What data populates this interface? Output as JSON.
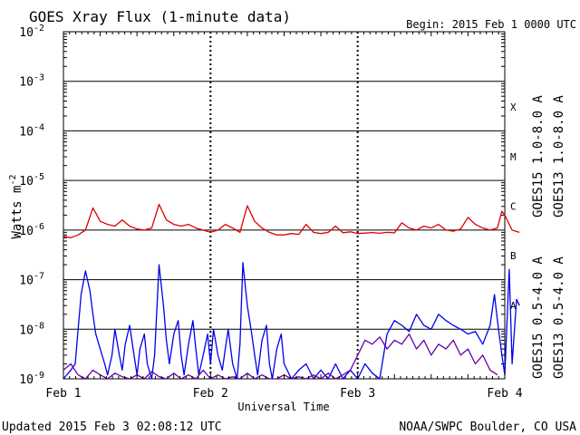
{
  "chart_data": {
    "type": "line",
    "title": "GOES Xray Flux (1-minute data)",
    "begin": "Begin:  2015 Feb 1 0000 UTC",
    "ylabel": "Watts m",
    "ylabel_exp": "-2",
    "xlabel": "Universal Time",
    "y_scale": "log",
    "ylim": [
      1e-09,
      0.01
    ],
    "y_ticks": [
      {
        "base": "10",
        "exp": "-2",
        "value": 0.01
      },
      {
        "base": "10",
        "exp": "-3",
        "value": 0.001
      },
      {
        "base": "10",
        "exp": "-4",
        "value": 0.0001
      },
      {
        "base": "10",
        "exp": "-5",
        "value": 1e-05
      },
      {
        "base": "10",
        "exp": "-6",
        "value": 1e-06
      },
      {
        "base": "10",
        "exp": "-7",
        "value": 1e-07
      },
      {
        "base": "10",
        "exp": "-8",
        "value": 1e-08
      },
      {
        "base": "10",
        "exp": "-9",
        "value": 1e-09
      }
    ],
    "x_ticks": [
      "Feb 1",
      "Feb 2",
      "Feb 3",
      "Feb 4"
    ],
    "xlim_days": [
      0,
      3
    ],
    "flare_classes": [
      {
        "label": "X",
        "value": 0.000316
      },
      {
        "label": "M",
        "value": 3.16e-05
      },
      {
        "label": "C",
        "value": 3.16e-06
      },
      {
        "label": "B",
        "value": 3.16e-07
      },
      {
        "label": "A",
        "value": 3.16e-08
      }
    ],
    "grid": "horizontal lines at each decade, dotted day boundaries",
    "legend": [
      {
        "label": "GOES15 1.0-8.0 A",
        "color": "#dd0000"
      },
      {
        "label": "GOES13 1.0-8.0 A",
        "color": "#e8a000"
      },
      {
        "label": "GOES15 0.5-4.0 A",
        "color": "#0000ee"
      },
      {
        "label": "GOES13 0.5-4.0 A",
        "color": "#6600aa"
      }
    ],
    "series": [
      {
        "name": "GOES15 1.0-8.0 A",
        "color": "#dd0000",
        "x": [
          0.0,
          0.05,
          0.1,
          0.15,
          0.2,
          0.22,
          0.25,
          0.3,
          0.35,
          0.4,
          0.45,
          0.5,
          0.55,
          0.6,
          0.65,
          0.7,
          0.75,
          0.8,
          0.85,
          0.9,
          0.95,
          1.0,
          1.05,
          1.1,
          1.15,
          1.2,
          1.25,
          1.3,
          1.35,
          1.4,
          1.45,
          1.5,
          1.55,
          1.6,
          1.65,
          1.7,
          1.75,
          1.8,
          1.85,
          1.9,
          1.95,
          2.0,
          2.05,
          2.1,
          2.15,
          2.2,
          2.25,
          2.3,
          2.35,
          2.4,
          2.45,
          2.5,
          2.55,
          2.6,
          2.65,
          2.7,
          2.75,
          2.8,
          2.85,
          2.9,
          2.95,
          2.98,
          3.0,
          3.05,
          3.1
        ],
        "values": [
          7.5e-07,
          7e-07,
          8e-07,
          1e-06,
          2.8e-06,
          2.2e-06,
          1.5e-06,
          1.3e-06,
          1.2e-06,
          1.6e-06,
          1.2e-06,
          1.05e-06,
          1e-06,
          1.1e-06,
          3.3e-06,
          1.6e-06,
          1.3e-06,
          1.2e-06,
          1.3e-06,
          1.1e-06,
          1e-06,
          9e-07,
          1e-06,
          1.3e-06,
          1.1e-06,
          9e-07,
          3.1e-06,
          1.5e-06,
          1.1e-06,
          9e-07,
          8e-07,
          8e-07,
          8.5e-07,
          8.2e-07,
          1.3e-06,
          9e-07,
          8.5e-07,
          9e-07,
          1.2e-06,
          8.8e-07,
          9.2e-07,
          8.5e-07,
          8.7e-07,
          8.9e-07,
          8.6e-07,
          9e-07,
          8.8e-07,
          1.4e-06,
          1.1e-06,
          1e-06,
          1.2e-06,
          1.1e-06,
          1.3e-06,
          1e-06,
          9.5e-07,
          1.05e-06,
          1.8e-06,
          1.3e-06,
          1.1e-06,
          1e-06,
          1.1e-06,
          2.4e-06,
          2e-06,
          1e-06,
          9e-07
        ]
      },
      {
        "name": "GOES15 0.5-4.0 A",
        "color": "#0000ee",
        "x": [
          0.0,
          0.05,
          0.08,
          0.1,
          0.12,
          0.15,
          0.18,
          0.2,
          0.22,
          0.25,
          0.28,
          0.3,
          0.33,
          0.35,
          0.38,
          0.4,
          0.42,
          0.45,
          0.48,
          0.5,
          0.52,
          0.55,
          0.57,
          0.6,
          0.62,
          0.65,
          0.68,
          0.7,
          0.72,
          0.75,
          0.78,
          0.8,
          0.82,
          0.85,
          0.88,
          0.9,
          0.92,
          0.95,
          0.98,
          1.0,
          1.02,
          1.05,
          1.08,
          1.1,
          1.12,
          1.15,
          1.18,
          1.2,
          1.22,
          1.25,
          1.28,
          1.3,
          1.32,
          1.35,
          1.38,
          1.4,
          1.42,
          1.45,
          1.48,
          1.5,
          1.55,
          1.6,
          1.65,
          1.7,
          1.75,
          1.8,
          1.85,
          1.9,
          1.95,
          2.0,
          2.05,
          2.1,
          2.15,
          2.2,
          2.25,
          2.3,
          2.35,
          2.4,
          2.45,
          2.5,
          2.55,
          2.6,
          2.65,
          2.7,
          2.75,
          2.8,
          2.85,
          2.9,
          2.93,
          2.95,
          2.98,
          3.0,
          3.03,
          3.05,
          3.08,
          3.1
        ],
        "values": [
          1e-09,
          1.5e-09,
          2e-09,
          1e-08,
          5e-08,
          1.5e-07,
          6e-08,
          2e-08,
          8e-09,
          4e-09,
          2e-09,
          1.2e-09,
          3e-09,
          1e-08,
          3e-09,
          1.5e-09,
          5e-09,
          1.2e-08,
          3e-09,
          1.2e-09,
          4e-09,
          8e-09,
          2e-09,
          1e-09,
          3e-09,
          2e-07,
          3e-08,
          6e-09,
          2e-09,
          8e-09,
          1.5e-08,
          3e-09,
          1.2e-09,
          5e-09,
          1.5e-08,
          4e-09,
          1.2e-09,
          3e-09,
          8e-09,
          2e-09,
          1e-08,
          3e-09,
          1.5e-09,
          4e-09,
          1e-08,
          2e-09,
          1e-09,
          5e-09,
          2.2e-07,
          3e-08,
          8e-09,
          3e-09,
          1.2e-09,
          6e-09,
          1.2e-08,
          2e-09,
          1e-09,
          4e-09,
          8e-09,
          2e-09,
          1e-09,
          1.5e-09,
          2e-09,
          1e-09,
          1.5e-09,
          1e-09,
          2e-09,
          1e-09,
          1.5e-09,
          1e-09,
          2e-09,
          1.3e-09,
          1e-09,
          8e-09,
          1.5e-08,
          1.2e-08,
          9e-09,
          2e-08,
          1.2e-08,
          1e-08,
          2e-08,
          1.5e-08,
          1.2e-08,
          1e-08,
          8e-09,
          9e-09,
          5e-09,
          1.2e-08,
          5e-08,
          1.5e-08,
          3e-09,
          1.2e-09,
          1.6e-07,
          2e-09,
          4e-08,
          3e-08
        ]
      },
      {
        "name": "GOES13 0.5-4.0 A",
        "color": "#6600aa",
        "x": [
          0.0,
          0.05,
          0.1,
          0.15,
          0.2,
          0.25,
          0.3,
          0.35,
          0.4,
          0.45,
          0.5,
          0.55,
          0.6,
          0.65,
          0.7,
          0.75,
          0.8,
          0.85,
          0.9,
          0.95,
          1.0,
          1.05,
          1.1,
          1.15,
          1.2,
          1.25,
          1.3,
          1.35,
          1.4,
          1.45,
          1.5,
          1.55,
          1.6,
          1.65,
          1.7,
          1.75,
          1.8,
          1.85,
          1.9,
          1.95,
          2.0,
          2.05,
          2.1,
          2.15,
          2.2,
          2.25,
          2.3,
          2.35,
          2.4,
          2.45,
          2.5,
          2.55,
          2.6,
          2.65,
          2.7,
          2.75,
          2.8,
          2.85,
          2.9,
          2.95
        ],
        "values": [
          1.5e-09,
          2e-09,
          1.2e-09,
          1e-09,
          1.5e-09,
          1.2e-09,
          1e-09,
          1.3e-09,
          1.1e-09,
          1e-09,
          1.2e-09,
          1e-09,
          1.4e-09,
          1.1e-09,
          1e-09,
          1.3e-09,
          1e-09,
          1.2e-09,
          1e-09,
          1.5e-09,
          1e-09,
          1.2e-09,
          1e-09,
          1.1e-09,
          1e-09,
          1.3e-09,
          1e-09,
          1.2e-09,
          1e-09,
          1e-09,
          1.2e-09,
          1e-09,
          1.1e-09,
          1e-09,
          1.2e-09,
          1e-09,
          1.3e-09,
          1e-09,
          1.2e-09,
          1.5e-09,
          3e-09,
          6e-09,
          5e-09,
          7e-09,
          4e-09,
          6e-09,
          5e-09,
          8e-09,
          4e-09,
          6e-09,
          3e-09,
          5e-09,
          4e-09,
          6e-09,
          3e-09,
          4e-09,
          2e-09,
          3e-09,
          1.5e-09,
          1.2e-09
        ]
      }
    ]
  },
  "footer": {
    "updated": "Updated 2015 Feb  3 02:08:12 UTC",
    "credit": "NOAA/SWPC Boulder, CO USA"
  }
}
